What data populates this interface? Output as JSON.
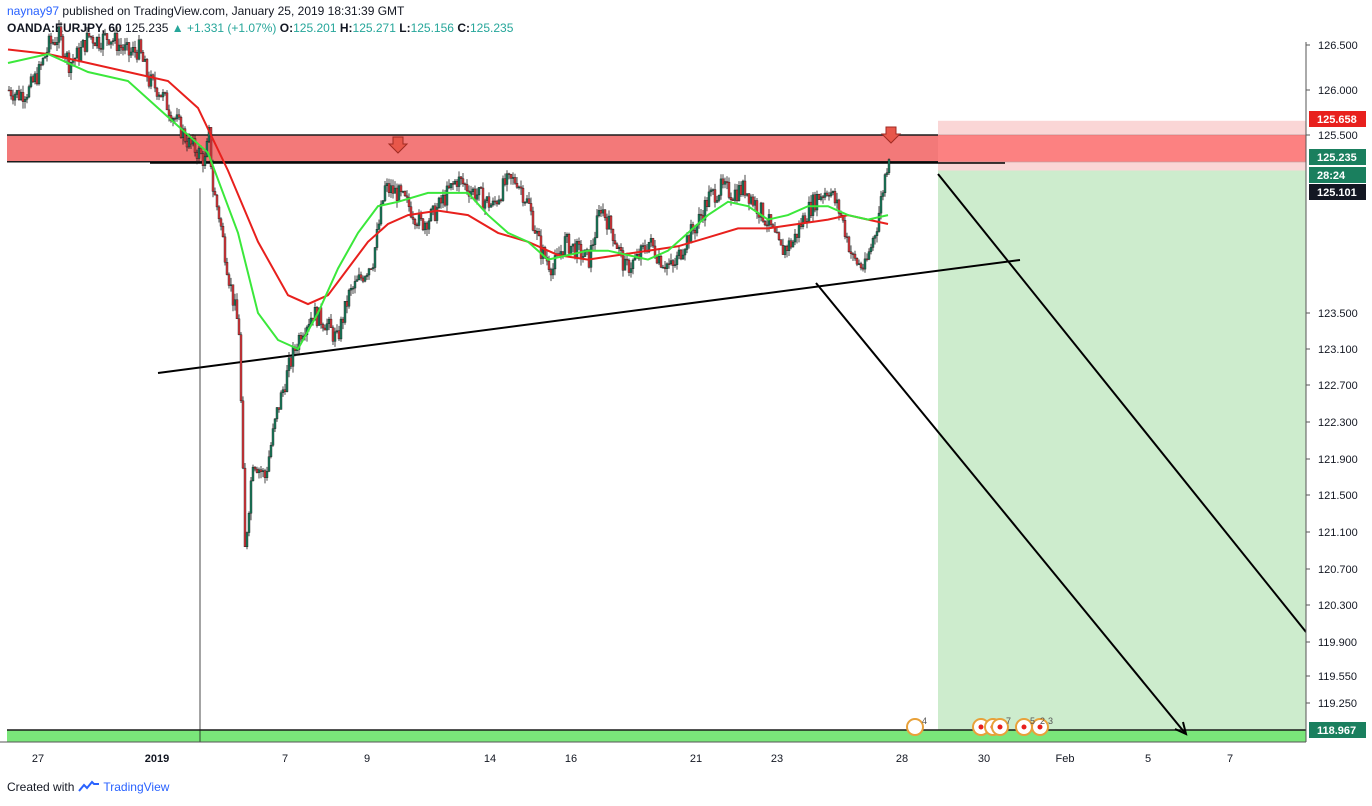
{
  "header": {
    "author": "naynay97",
    "published_text": "published on TradingView.com, January 25, 2019 18:31:39 GMT",
    "symbol": "OANDA:EURJPY, 60",
    "last": "125.235",
    "change": "+1.331 (+1.07%)",
    "o_label": "O:",
    "o": "125.201",
    "h_label": "H:",
    "h": "125.271",
    "l_label": "L:",
    "l": "125.156",
    "c_label": "C:",
    "c": "125.235"
  },
  "footer": {
    "created_with": "Created with",
    "brand": "TradingView"
  },
  "colors": {
    "up": "#1a7f5e",
    "down": "#e0393e",
    "ma_fast": "#3be83b",
    "ma_slow": "#e8201d",
    "resistance_zone": "#f26a6a",
    "support_zone": "#7ae67a",
    "target_zone": "#cdeccd",
    "stop_zone": "#f9cfcf"
  },
  "chart_data": {
    "type": "candlestick",
    "symbol": "OANDA:EURJPY",
    "interval": "60",
    "ylim": [
      118.75,
      126.6
    ],
    "y_ticks": [
      "126.500",
      "126.000",
      "125.500",
      "123.500",
      "123.100",
      "122.700",
      "122.300",
      "121.900",
      "121.500",
      "121.100",
      "120.700",
      "120.300",
      "119.900",
      "119.550",
      "119.250"
    ],
    "x_ticks": [
      "27",
      "2019",
      "7",
      "9",
      "14",
      "16",
      "21",
      "23",
      "28",
      "30",
      "Feb",
      "5",
      "7"
    ],
    "price_badges": [
      {
        "label": "125.658",
        "color": "#e8201d"
      },
      {
        "label": "125.235",
        "color": "#1a7f5e"
      },
      {
        "label": "28:24",
        "color": "#1a7f5e"
      },
      {
        "label": "125.101",
        "color": "#131722"
      },
      {
        "label": "118.967",
        "color": "#1a7f5e"
      }
    ],
    "resistance_zone": [
      125.2,
      125.5
    ],
    "support_level": 118.967,
    "stop_level": 125.658,
    "series": [
      {
        "role": "close",
        "points": [
          [
            0,
            126.0
          ],
          [
            5,
            125.95
          ],
          [
            10,
            126.0
          ],
          [
            15,
            126.2
          ],
          [
            20,
            126.5
          ],
          [
            25,
            126.6
          ],
          [
            30,
            126.3
          ],
          [
            35,
            126.4
          ],
          [
            40,
            126.6
          ],
          [
            45,
            126.55
          ],
          [
            50,
            126.6
          ],
          [
            55,
            126.5
          ],
          [
            60,
            126.4
          ],
          [
            65,
            126.45
          ],
          [
            70,
            126.1
          ],
          [
            75,
            126.0
          ],
          [
            80,
            125.8
          ],
          [
            85,
            125.6
          ],
          [
            90,
            125.4
          ],
          [
            95,
            125.3
          ],
          [
            98,
            125.2
          ],
          [
            100,
            125.5
          ],
          [
            102,
            124.9
          ],
          [
            105,
            124.6
          ],
          [
            110,
            123.9
          ],
          [
            115,
            123.3
          ],
          [
            118,
            120.9
          ],
          [
            122,
            121.9
          ],
          [
            128,
            121.7
          ],
          [
            134,
            122.4
          ],
          [
            140,
            122.9
          ],
          [
            146,
            123.3
          ],
          [
            152,
            123.5
          ],
          [
            158,
            123.4
          ],
          [
            164,
            123.2
          ],
          [
            170,
            123.7
          ],
          [
            176,
            123.9
          ],
          [
            182,
            124.1
          ],
          [
            188,
            124.9
          ],
          [
            194,
            124.85
          ],
          [
            200,
            124.7
          ],
          [
            206,
            124.5
          ],
          [
            212,
            124.6
          ],
          [
            218,
            124.8
          ],
          [
            224,
            125.0
          ],
          [
            230,
            124.9
          ],
          [
            236,
            124.8
          ],
          [
            242,
            124.7
          ],
          [
            248,
            124.95
          ],
          [
            254,
            125.0
          ],
          [
            260,
            124.7
          ],
          [
            266,
            124.2
          ],
          [
            272,
            124.0
          ],
          [
            278,
            124.3
          ],
          [
            284,
            124.2
          ],
          [
            290,
            124.1
          ],
          [
            296,
            124.7
          ],
          [
            302,
            124.4
          ],
          [
            308,
            124.0
          ],
          [
            314,
            124.1
          ],
          [
            320,
            124.3
          ],
          [
            326,
            124.1
          ],
          [
            332,
            124.0
          ],
          [
            338,
            124.3
          ],
          [
            344,
            124.5
          ],
          [
            350,
            124.8
          ],
          [
            356,
            124.9
          ],
          [
            362,
            124.85
          ],
          [
            368,
            124.9
          ],
          [
            374,
            124.7
          ],
          [
            380,
            124.5
          ],
          [
            386,
            124.2
          ],
          [
            392,
            124.3
          ],
          [
            398,
            124.6
          ],
          [
            404,
            124.8
          ],
          [
            410,
            124.9
          ],
          [
            416,
            124.6
          ],
          [
            422,
            124.1
          ],
          [
            428,
            124.0
          ],
          [
            434,
            124.5
          ],
          [
            440,
            125.3
          ]
        ]
      },
      {
        "role": "ma_fast",
        "points": [
          [
            0,
            126.3
          ],
          [
            20,
            126.4
          ],
          [
            40,
            126.2
          ],
          [
            60,
            126.1
          ],
          [
            80,
            125.7
          ],
          [
            100,
            125.3
          ],
          [
            115,
            124.4
          ],
          [
            125,
            123.5
          ],
          [
            135,
            123.2
          ],
          [
            145,
            123.1
          ],
          [
            155,
            123.5
          ],
          [
            165,
            124.0
          ],
          [
            175,
            124.4
          ],
          [
            185,
            124.7
          ],
          [
            195,
            124.75
          ],
          [
            210,
            124.85
          ],
          [
            230,
            124.85
          ],
          [
            240,
            124.6
          ],
          [
            250,
            124.4
          ],
          [
            260,
            124.3
          ],
          [
            270,
            124.1
          ],
          [
            280,
            124.15
          ],
          [
            290,
            124.2
          ],
          [
            300,
            124.2
          ],
          [
            310,
            124.15
          ],
          [
            320,
            124.1
          ],
          [
            330,
            124.2
          ],
          [
            340,
            124.4
          ],
          [
            350,
            124.6
          ],
          [
            360,
            124.75
          ],
          [
            370,
            124.7
          ],
          [
            380,
            124.55
          ],
          [
            390,
            124.6
          ],
          [
            400,
            124.7
          ],
          [
            410,
            124.7
          ],
          [
            420,
            124.6
          ],
          [
            430,
            124.55
          ],
          [
            440,
            124.6
          ]
        ]
      },
      {
        "role": "ma_slow",
        "points": [
          [
            0,
            126.45
          ],
          [
            20,
            126.4
          ],
          [
            40,
            126.3
          ],
          [
            60,
            126.2
          ],
          [
            80,
            126.1
          ],
          [
            95,
            125.8
          ],
          [
            110,
            125.1
          ],
          [
            125,
            124.3
          ],
          [
            140,
            123.7
          ],
          [
            150,
            123.6
          ],
          [
            160,
            123.7
          ],
          [
            170,
            124.0
          ],
          [
            180,
            124.3
          ],
          [
            190,
            124.5
          ],
          [
            200,
            124.6
          ],
          [
            215,
            124.65
          ],
          [
            230,
            124.6
          ],
          [
            245,
            124.4
          ],
          [
            260,
            124.3
          ],
          [
            275,
            124.15
          ],
          [
            290,
            124.1
          ],
          [
            305,
            124.15
          ],
          [
            320,
            124.2
          ],
          [
            335,
            124.25
          ],
          [
            350,
            124.35
          ],
          [
            365,
            124.45
          ],
          [
            380,
            124.45
          ],
          [
            395,
            124.5
          ],
          [
            410,
            124.55
          ],
          [
            420,
            124.6
          ],
          [
            430,
            124.55
          ],
          [
            440,
            124.5
          ]
        ]
      }
    ]
  }
}
